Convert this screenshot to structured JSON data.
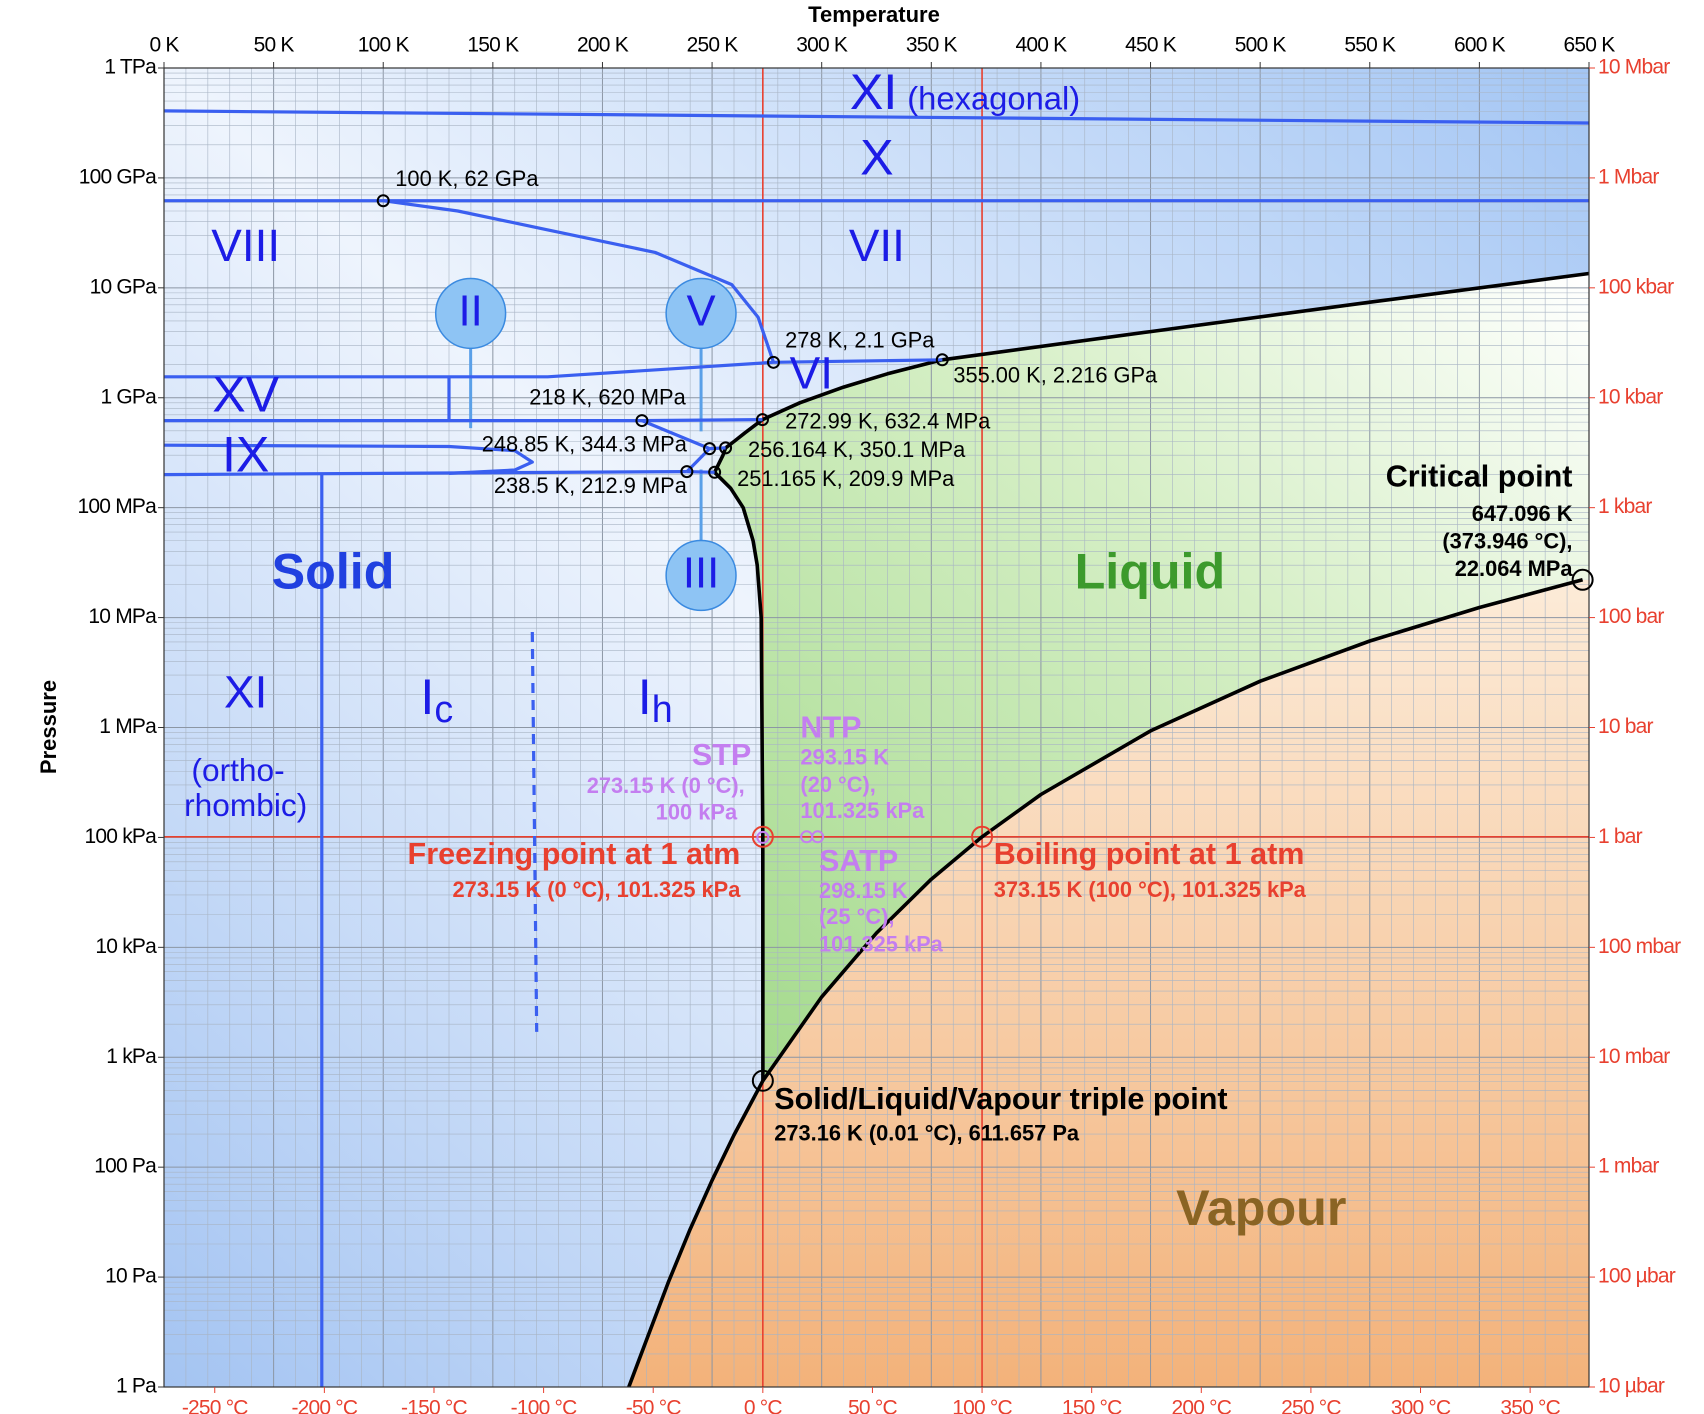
{
  "chart_data": {
    "type": "line",
    "log_scale": true,
    "grid": true,
    "x_label": "Temperature",
    "y_label": "Pressure",
    "xlim": [
      0,
      650
    ],
    "xticks": [
      {
        "value": 0,
        "label": "0 K"
      },
      {
        "value": 50,
        "label": "50 K"
      },
      {
        "value": 100,
        "label": "100 K"
      },
      {
        "value": 150,
        "label": "150 K"
      },
      {
        "value": 200,
        "label": "200 K"
      },
      {
        "value": 250,
        "label": "250 K"
      },
      {
        "value": 300,
        "label": "300 K"
      },
      {
        "value": 350,
        "label": "350 K"
      },
      {
        "value": 400,
        "label": "400 K"
      },
      {
        "value": 450,
        "label": "450 K"
      },
      {
        "value": 500,
        "label": "500 K"
      },
      {
        "value": 550,
        "label": "550 K"
      },
      {
        "value": 600,
        "label": "600 K"
      },
      {
        "value": 650,
        "label": "650 K"
      }
    ],
    "x2lim": [
      -273.15,
      376.85
    ],
    "x2ticks": [
      {
        "value": -250,
        "label": "-250 °C"
      },
      {
        "value": -200,
        "label": "-200 °C"
      },
      {
        "value": -150,
        "label": "-150 °C"
      },
      {
        "value": -100,
        "label": "-100 °C"
      },
      {
        "value": -50,
        "label": "-50 °C"
      },
      {
        "value": 0,
        "label": "0 °C"
      },
      {
        "value": 50,
        "label": "50 °C"
      },
      {
        "value": 100,
        "label": "100 °C"
      },
      {
        "value": 150,
        "label": "150 °C"
      },
      {
        "value": 200,
        "label": "200 °C"
      },
      {
        "value": 250,
        "label": "250 °C"
      },
      {
        "value": 300,
        "label": "300 °C"
      },
      {
        "value": 350,
        "label": "350 °C"
      }
    ],
    "ylim": [
      1,
      1000000000000
    ],
    "yticks": [
      {
        "value": 1,
        "label": "1 Pa"
      },
      {
        "value": 10,
        "label": "10 Pa"
      },
      {
        "value": 100,
        "label": "100 Pa"
      },
      {
        "value": 1000,
        "label": "1 kPa"
      },
      {
        "value": 10000,
        "label": "10 kPa"
      },
      {
        "value": 100000,
        "label": "100 kPa"
      },
      {
        "value": 1000000,
        "label": "1 MPa"
      },
      {
        "value": 10000000,
        "label": "10 MPa"
      },
      {
        "value": 100000000,
        "label": "100 MPa"
      },
      {
        "value": 1000000000,
        "label": "1 GPa"
      },
      {
        "value": 10000000000,
        "label": "10 GPa"
      },
      {
        "value": 100000000000,
        "label": "100 GPa"
      },
      {
        "value": 1000000000000,
        "label": "1 TPa"
      }
    ],
    "y2lim": [
      1e-05,
      10000000
    ],
    "y2ticks": [
      {
        "value": 1e-05,
        "label": "10 µbar"
      },
      {
        "value": 0.0001,
        "label": "100 µbar"
      },
      {
        "value": 0.001,
        "label": "1 mbar"
      },
      {
        "value": 0.01,
        "label": "10 mbar"
      },
      {
        "value": 0.1,
        "label": "100 mbar"
      },
      {
        "value": 1,
        "label": "1 bar"
      },
      {
        "value": 10,
        "label": "10 bar"
      },
      {
        "value": 100,
        "label": "100 bar"
      },
      {
        "value": 1000,
        "label": "1 kbar"
      },
      {
        "value": 10000,
        "label": "10 kbar"
      },
      {
        "value": 100000,
        "label": "100 kbar"
      },
      {
        "value": 1000000,
        "label": "1 Mbar"
      },
      {
        "value": 10000000,
        "label": "10 Mbar"
      }
    ],
    "reference_lines": {
      "x": [
        273.15,
        373.15
      ],
      "y": [
        101325
      ],
      "color": "#e8402f"
    },
    "series": [
      {
        "color": "#000000",
        "x": [
          212,
          220,
          230,
          240,
          250,
          260,
          273.16
        ],
        "y": [
          1,
          2.65,
          8.9,
          27.3,
          76,
          196,
          611.657
        ]
      },
      {
        "color": "#000000",
        "x": [
          273.16,
          300,
          325,
          350,
          373.15,
          400,
          450,
          500,
          550,
          600,
          647.096
        ],
        "y": [
          611.657,
          3537,
          13500,
          41700,
          101325,
          245800,
          932000,
          2640000,
          6120000,
          12340000,
          22064000
        ]
      },
      {
        "color": "#000000",
        "x": [
          273.16,
          273.15,
          272.4,
          270.6,
          268.7,
          264.2,
          258.5,
          251.165
        ],
        "y": [
          611.657,
          101325,
          10000000,
          30000000,
          50000000,
          100000000,
          150000000,
          209900000
        ]
      },
      {
        "color": "#000000",
        "x": [
          251.165,
          253,
          255,
          256.164
        ],
        "y": [
          209900000,
          250000000,
          300000000,
          350100000
        ]
      },
      {
        "color": "#000000",
        "x": [
          256.164,
          260,
          265,
          270,
          272.99
        ],
        "y": [
          350100000,
          400000000,
          480000000,
          570000000,
          632400000
        ]
      },
      {
        "color": "#000000",
        "x": [
          272.99,
          290,
          310,
          330,
          355
        ],
        "y": [
          632400000,
          900000000,
          1250000000,
          1650000000,
          2216000000
        ]
      },
      {
        "color": "#000000",
        "x": [
          355,
          450,
          550,
          650
        ],
        "y": [
          2216000000,
          4000000000,
          7400000000,
          13500000000
        ]
      },
      {
        "color": "#3a5ff0",
        "x": [
          0,
          650
        ],
        "y": [
          407000000000,
          316000000000
        ]
      },
      {
        "color": "#3a5ff0",
        "x": [
          0,
          650
        ],
        "y": [
          62000000000,
          62000000000
        ]
      },
      {
        "color": "#3a5ff0",
        "x": [
          100,
          134,
          174,
          224,
          259,
          271,
          278
        ],
        "y": [
          62000000000,
          50000000000,
          34000000000,
          21000000000,
          10700000000,
          5400000000,
          2100000000
        ]
      },
      {
        "color": "#3a5ff0",
        "x": [
          278,
          355
        ],
        "y": [
          2100000000,
          2216000000
        ]
      },
      {
        "color": "#3a5ff0",
        "x": [
          0,
          175,
          278
        ],
        "y": [
          1550000000,
          1550000000,
          2100000000
        ]
      },
      {
        "color": "#3a5ff0",
        "x": [
          130,
          130
        ],
        "y": [
          1550000000,
          620000000
        ]
      },
      {
        "color": "#3a5ff0",
        "x": [
          0,
          218,
          272.99
        ],
        "y": [
          620000000,
          620000000,
          632400000
        ]
      },
      {
        "color": "#3a5ff0",
        "x": [
          218,
          248.85
        ],
        "y": [
          620000000,
          344300000
        ]
      },
      {
        "color": "#3a5ff0",
        "x": [
          238.5,
          248.85
        ],
        "y": [
          212900000,
          344300000
        ]
      },
      {
        "color": "#3a5ff0",
        "x": [
          248.85,
          256.164
        ],
        "y": [
          344300000,
          350100000
        ]
      },
      {
        "color": "#3a5ff0",
        "x": [
          0,
          238.5
        ],
        "y": [
          200000000,
          212900000
        ]
      },
      {
        "color": "#3a5ff0",
        "x": [
          238.5,
          251.165
        ],
        "y": [
          212900000,
          209900000
        ]
      },
      {
        "color": "#3a5ff0",
        "x": [
          0,
          130,
          160,
          168,
          160,
          130
        ],
        "y": [
          370000000,
          360000000,
          330000000,
          260000000,
          220000000,
          205000000
        ]
      },
      {
        "color": "#3a5ff0",
        "x": [
          72,
          72
        ],
        "y": [
          1,
          200000000
        ]
      },
      {
        "color": "#3a5ff0",
        "dashed": true,
        "x": [
          168,
          170
        ],
        "y": [
          7400000,
          1700
        ]
      }
    ],
    "points": [
      {
        "x": 100,
        "y": 62000000000,
        "marker": "small",
        "lines": [
          "100 K, 62 GPa"
        ]
      },
      {
        "x": 278,
        "y": 2100000000,
        "marker": "small",
        "lines": [
          "278 K, 2.1 GPa"
        ]
      },
      {
        "x": 355,
        "y": 2216000000,
        "marker": "small",
        "lines": [
          "355.00 K, 2.216 GPa"
        ]
      },
      {
        "x": 218,
        "y": 620000000,
        "marker": "small",
        "lines": [
          "218 K, 620 MPa"
        ]
      },
      {
        "x": 272.99,
        "y": 632400000,
        "marker": "small",
        "lines": [
          "272.99 K, 632.4 MPa"
        ]
      },
      {
        "x": 248.85,
        "y": 344300000,
        "marker": "small",
        "lines": [
          "248.85 K, 344.3 MPa"
        ]
      },
      {
        "x": 256.164,
        "y": 350100000,
        "marker": "small",
        "lines": [
          "256.164 K, 350.1 MPa"
        ]
      },
      {
        "x": 238.5,
        "y": 212900000,
        "marker": "small",
        "lines": [
          "238.5 K, 212.9 MPa"
        ]
      },
      {
        "x": 251.165,
        "y": 209900000,
        "marker": "small",
        "lines": [
          "251.165 K, 209.9 MPa"
        ]
      },
      {
        "x": 647.096,
        "y": 22064000,
        "marker": "large",
        "color": "#000000",
        "lines": [
          "Critical point",
          "647.096 K",
          "(373.946 °C),",
          "22.064 MPa"
        ]
      },
      {
        "x": 273.16,
        "y": 611.657,
        "marker": "large",
        "color": "#000000",
        "lines": [
          "Solid/Liquid/Vapour triple point",
          "273.16 K (0.01 °C), 611.657 Pa"
        ]
      },
      {
        "x": 273.15,
        "y": 101325,
        "marker": "large",
        "color": "#e8402f",
        "lines": [
          "Freezing point at 1 atm",
          "273.15 K (0 °C), 101.325 kPa"
        ]
      },
      {
        "x": 373.15,
        "y": 101325,
        "marker": "large",
        "color": "#e8402f",
        "lines": [
          "Boiling point at 1 atm",
          "373.15 K (100 °C), 101.325 kPa"
        ]
      },
      {
        "x": 273.15,
        "y": 100000,
        "marker": "small",
        "color": "#c47ef0",
        "lines": [
          "STP",
          "273.15 K (0 °C),",
          "100 kPa"
        ]
      },
      {
        "x": 293.15,
        "y": 101325,
        "marker": "small",
        "color": "#c47ef0",
        "lines": [
          "NTP",
          "293.15 K",
          "(20 °C),",
          "101.325 kPa"
        ]
      },
      {
        "x": 298.15,
        "y": 101325,
        "marker": "small",
        "color": "#c47ef0",
        "lines": [
          "SATP",
          "298.15 K",
          "(25 °C),",
          "101.325 kPa"
        ]
      }
    ],
    "regions": [
      {
        "label": "XI"
      },
      {
        "label": "(hexagonal)"
      },
      {
        "label": "X"
      },
      {
        "label": "VII"
      },
      {
        "label": "VIII"
      },
      {
        "label": "II"
      },
      {
        "label": "V"
      },
      {
        "label": "VI"
      },
      {
        "label": "XV"
      },
      {
        "label": "IX"
      },
      {
        "label": "III"
      },
      {
        "label": "Solid"
      },
      {
        "label": "Liquid"
      },
      {
        "label": "XI"
      },
      {
        "label": "(ortho-"
      },
      {
        "label": "rhombic)"
      },
      {
        "label": "I",
        "subscript": "c"
      },
      {
        "label": "I",
        "subscript": "h"
      },
      {
        "label": "Vapour"
      }
    ]
  }
}
